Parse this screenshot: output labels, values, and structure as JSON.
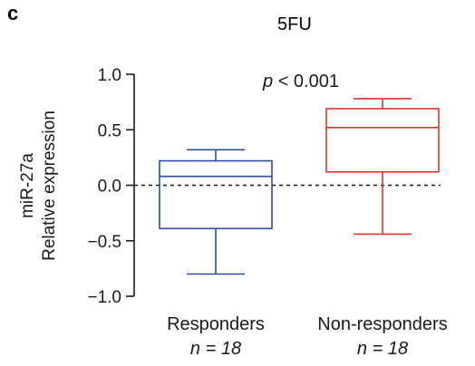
{
  "panel_label": "c",
  "chart_data": {
    "type": "box",
    "title": "5FU",
    "ylabel_line1": "miR-27a",
    "ylabel_line2": "Relative expression",
    "ylim": [
      -1.0,
      1.0
    ],
    "yticks": [
      1.0,
      0.5,
      0.0,
      -0.5,
      -1.0
    ],
    "ytick_labels": [
      "1.0",
      "0.5",
      "0.0",
      "−0.5",
      "−1.0"
    ],
    "reference_line": {
      "y": 0.0,
      "style": "dashed"
    },
    "annotation": "p < 0.001",
    "groups": [
      {
        "label": "Responders",
        "n_label": "n = 18",
        "color": "#2b4c9a",
        "whisker_low": -0.8,
        "q1": -0.39,
        "median": 0.08,
        "q3": 0.22,
        "whisker_high": 0.32
      },
      {
        "label": "Non-responders",
        "n_label": "n = 18",
        "color": "#e8332b",
        "whisker_low": -0.44,
        "q1": 0.12,
        "median": 0.52,
        "q3": 0.69,
        "whisker_high": 0.78
      }
    ]
  }
}
